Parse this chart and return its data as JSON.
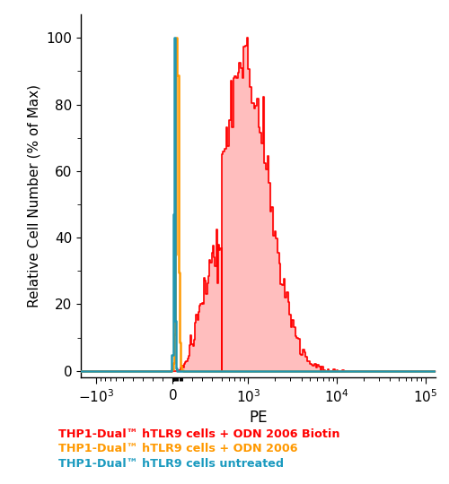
{
  "xlabel": "PE",
  "ylabel": "Relative Cell Number (% of Max)",
  "ylim": [
    -2,
    107
  ],
  "background_color": "#ffffff",
  "legend": [
    {
      "label": "THP1-Dual™ hTLR9 cells + ODN 2006 Biotin",
      "color": "#ff0000"
    },
    {
      "label": "THP1-Dual™ hTLR9 cells + ODN 2006",
      "color": "#ff9900"
    },
    {
      "label": "THP1-Dual™ hTLR9 cells untreated",
      "color": "#1a9abf"
    }
  ],
  "tick_positions": [
    -1000,
    0,
    1000,
    10000,
    100000
  ],
  "tick_labels": [
    "-10^3",
    "0",
    "10^3",
    "10^4",
    "10^5"
  ],
  "red_fill_color": "#ffb3b3",
  "red_line_color": "#ff0000",
  "orange_line_color": "#ff9900",
  "blue_line_color": "#2196b0"
}
